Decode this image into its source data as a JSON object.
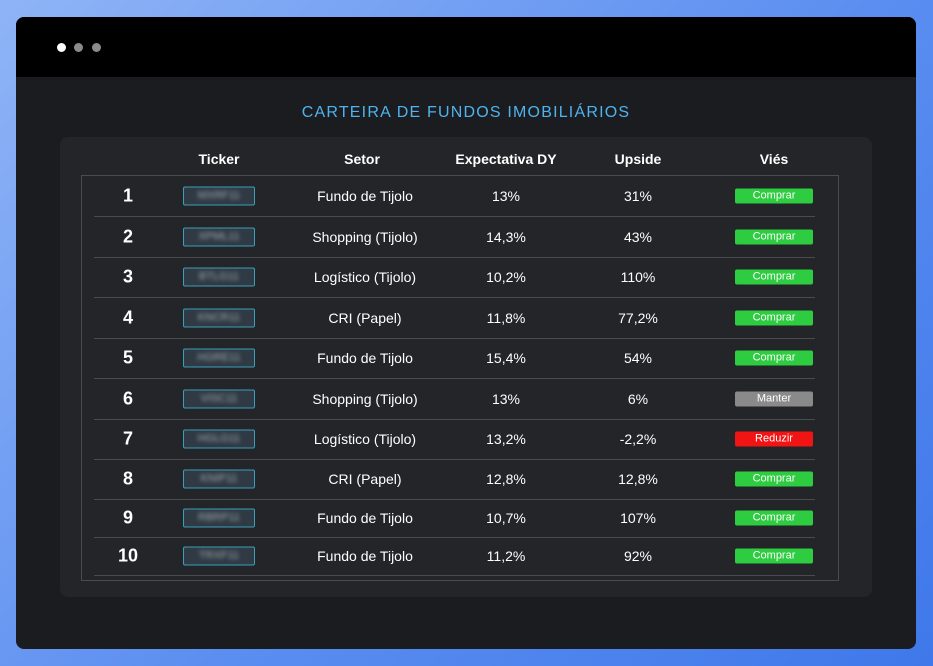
{
  "window": {
    "controls": [
      "close",
      "minimize",
      "maximize"
    ]
  },
  "title": "CARTEIRA DE FUNDOS IMOBILIÁRIOS",
  "headers": {
    "ticker": "Ticker",
    "setor": "Setor",
    "dy": "Expectativa DY",
    "upside": "Upside",
    "vies": "Viés"
  },
  "colors": {
    "accent": "#4fb3ef",
    "comprar": "#2ecc40",
    "manter": "#8a8a8a",
    "reduzir": "#f01414"
  },
  "rows": [
    {
      "num": "1",
      "ticker": "MXRF11",
      "setor": "Fundo de Tijolo",
      "dy": "13%",
      "upside": "31%",
      "vies": "Comprar",
      "status": "comprar"
    },
    {
      "num": "2",
      "ticker": "XPML11",
      "setor": "Shopping (Tijolo)",
      "dy": "14,3%",
      "upside": "43%",
      "vies": "Comprar",
      "status": "comprar"
    },
    {
      "num": "3",
      "ticker": "BTLG11",
      "setor": "Logístico (Tijolo)",
      "dy": "10,2%",
      "upside": "110%",
      "vies": "Comprar",
      "status": "comprar"
    },
    {
      "num": "4",
      "ticker": "KNCR11",
      "setor": "CRI (Papel)",
      "dy": "11,8%",
      "upside": "77,2%",
      "vies": "Comprar",
      "status": "comprar"
    },
    {
      "num": "5",
      "ticker": "HGRE11",
      "setor": "Fundo de Tijolo",
      "dy": "15,4%",
      "upside": "54%",
      "vies": "Comprar",
      "status": "comprar"
    },
    {
      "num": "6",
      "ticker": "VISC11",
      "setor": "Shopping (Tijolo)",
      "dy": "13%",
      "upside": "6%",
      "vies": "Manter",
      "status": "manter"
    },
    {
      "num": "7",
      "ticker": "HGLG11",
      "setor": "Logístico (Tijolo)",
      "dy": "13,2%",
      "upside": "-2,2%",
      "vies": "Reduzir",
      "status": "reduzir"
    },
    {
      "num": "8",
      "ticker": "KNIP11",
      "setor": "CRI (Papel)",
      "dy": "12,8%",
      "upside": "12,8%",
      "vies": "Comprar",
      "status": "comprar"
    },
    {
      "num": "9",
      "ticker": "RBRP11",
      "setor": "Fundo de Tijolo",
      "dy": "10,7%",
      "upside": "107%",
      "vies": "Comprar",
      "status": "comprar"
    },
    {
      "num": "10",
      "ticker": "TRXF11",
      "setor": "Fundo de Tijolo",
      "dy": "11,2%",
      "upside": "92%",
      "vies": "Comprar",
      "status": "comprar"
    }
  ]
}
